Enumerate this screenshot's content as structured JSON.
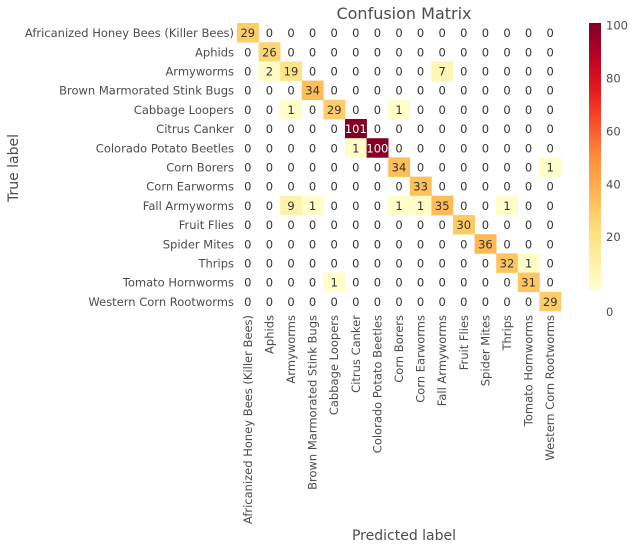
{
  "chart_data": {
    "type": "heatmap",
    "title": "Confusion Matrix",
    "xlabel": "Predicted label",
    "ylabel": "True label",
    "labels": [
      "Africanized Honey Bees (Killer Bees)",
      "Aphids",
      "Armyworms",
      "Brown Marmorated Stink Bugs",
      "Cabbage Loopers",
      "Citrus Canker",
      "Colorado Potato Beetles",
      "Corn Borers",
      "Corn Earworms",
      "Fall Armyworms",
      "Fruit Flies",
      "Spider Mites",
      "Thrips",
      "Tomato Hornworms",
      "Western Corn Rootworms"
    ],
    "matrix": [
      [
        29,
        0,
        0,
        0,
        0,
        0,
        0,
        0,
        0,
        0,
        0,
        0,
        0,
        0,
        0
      ],
      [
        0,
        26,
        0,
        0,
        0,
        0,
        0,
        0,
        0,
        0,
        0,
        0,
        0,
        0,
        0
      ],
      [
        0,
        2,
        19,
        0,
        0,
        0,
        0,
        0,
        0,
        7,
        0,
        0,
        0,
        0,
        0
      ],
      [
        0,
        0,
        0,
        34,
        0,
        0,
        0,
        0,
        0,
        0,
        0,
        0,
        0,
        0,
        0
      ],
      [
        0,
        0,
        1,
        0,
        29,
        0,
        0,
        1,
        0,
        0,
        0,
        0,
        0,
        0,
        0
      ],
      [
        0,
        0,
        0,
        0,
        0,
        101,
        0,
        0,
        0,
        0,
        0,
        0,
        0,
        0,
        0
      ],
      [
        0,
        0,
        0,
        0,
        0,
        1,
        100,
        0,
        0,
        0,
        0,
        0,
        0,
        0,
        0
      ],
      [
        0,
        0,
        0,
        0,
        0,
        0,
        0,
        34,
        0,
        0,
        0,
        0,
        0,
        0,
        1
      ],
      [
        0,
        0,
        0,
        0,
        0,
        0,
        0,
        0,
        33,
        0,
        0,
        0,
        0,
        0,
        0
      ],
      [
        0,
        0,
        9,
        1,
        0,
        0,
        0,
        1,
        1,
        35,
        0,
        0,
        1,
        0,
        0
      ],
      [
        0,
        0,
        0,
        0,
        0,
        0,
        0,
        0,
        0,
        0,
        30,
        0,
        0,
        0,
        0
      ],
      [
        0,
        0,
        0,
        0,
        0,
        0,
        0,
        0,
        0,
        0,
        0,
        36,
        0,
        0,
        0
      ],
      [
        0,
        0,
        0,
        0,
        0,
        0,
        0,
        0,
        0,
        0,
        0,
        0,
        32,
        1,
        0
      ],
      [
        0,
        0,
        0,
        0,
        1,
        0,
        0,
        0,
        0,
        0,
        0,
        0,
        0,
        31,
        0
      ],
      [
        0,
        0,
        0,
        0,
        0,
        0,
        0,
        0,
        0,
        0,
        0,
        0,
        0,
        0,
        29
      ]
    ],
    "colorbar": {
      "ticks": [
        0,
        20,
        40,
        60,
        80,
        100
      ],
      "range": [
        0,
        101
      ],
      "colormap": "YlOrRd"
    },
    "grid": false
  }
}
